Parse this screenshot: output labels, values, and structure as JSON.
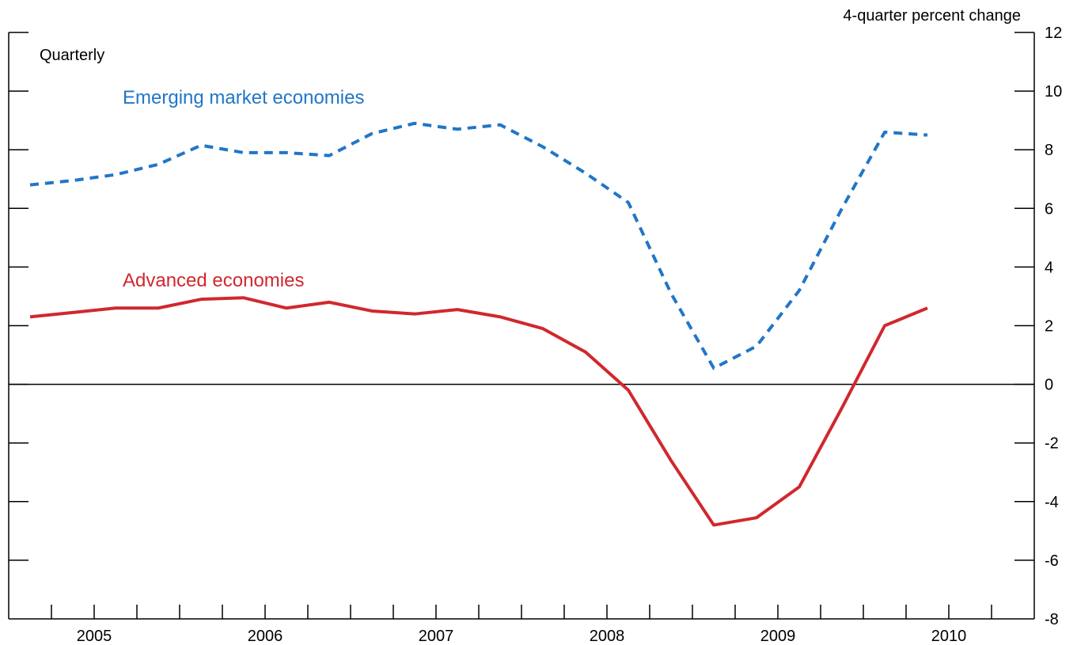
{
  "chart_data": {
    "type": "line",
    "frequency_note": "Quarterly",
    "y_unit": "4-quarter percent change",
    "ylim": [
      -8,
      12
    ],
    "y_ticks": [
      12,
      10,
      8,
      6,
      4,
      2,
      0,
      -2,
      -4,
      -6,
      -8
    ],
    "x_years": [
      "2005",
      "2006",
      "2007",
      "2008",
      "2009",
      "2010"
    ],
    "x_range": [
      2004.5,
      2010.5
    ],
    "zero_line": true,
    "grid": false,
    "series": [
      {
        "name": "Emerging market economies",
        "color": "#2176c7",
        "style": "dashed",
        "points": [
          [
            2004.625,
            6.8
          ],
          [
            2004.875,
            6.95
          ],
          [
            2005.125,
            7.15
          ],
          [
            2005.375,
            7.5
          ],
          [
            2005.625,
            8.15
          ],
          [
            2005.875,
            7.9
          ],
          [
            2006.125,
            7.9
          ],
          [
            2006.375,
            7.8
          ],
          [
            2006.625,
            8.55
          ],
          [
            2006.875,
            8.9
          ],
          [
            2007.125,
            8.7
          ],
          [
            2007.375,
            8.85
          ],
          [
            2007.625,
            8.1
          ],
          [
            2007.875,
            7.2
          ],
          [
            2008.125,
            6.2
          ],
          [
            2008.375,
            3.1
          ],
          [
            2008.625,
            0.55
          ],
          [
            2008.875,
            1.3
          ],
          [
            2009.125,
            3.2
          ],
          [
            2009.375,
            6.0
          ],
          [
            2009.625,
            8.6
          ],
          [
            2009.875,
            8.5
          ]
        ]
      },
      {
        "name": "Advanced economies",
        "color": "#d0282e",
        "style": "solid",
        "points": [
          [
            2004.625,
            2.3
          ],
          [
            2004.875,
            2.45
          ],
          [
            2005.125,
            2.6
          ],
          [
            2005.375,
            2.6
          ],
          [
            2005.625,
            2.9
          ],
          [
            2005.875,
            2.95
          ],
          [
            2006.125,
            2.6
          ],
          [
            2006.375,
            2.8
          ],
          [
            2006.625,
            2.5
          ],
          [
            2006.875,
            2.4
          ],
          [
            2007.125,
            2.55
          ],
          [
            2007.375,
            2.3
          ],
          [
            2007.625,
            1.9
          ],
          [
            2007.875,
            1.1
          ],
          [
            2008.125,
            -0.2
          ],
          [
            2008.375,
            -2.6
          ],
          [
            2008.625,
            -4.8
          ],
          [
            2008.875,
            -4.55
          ],
          [
            2009.125,
            -3.5
          ],
          [
            2009.375,
            -0.8
          ],
          [
            2009.625,
            2.0
          ],
          [
            2009.875,
            2.6
          ]
        ]
      }
    ]
  }
}
